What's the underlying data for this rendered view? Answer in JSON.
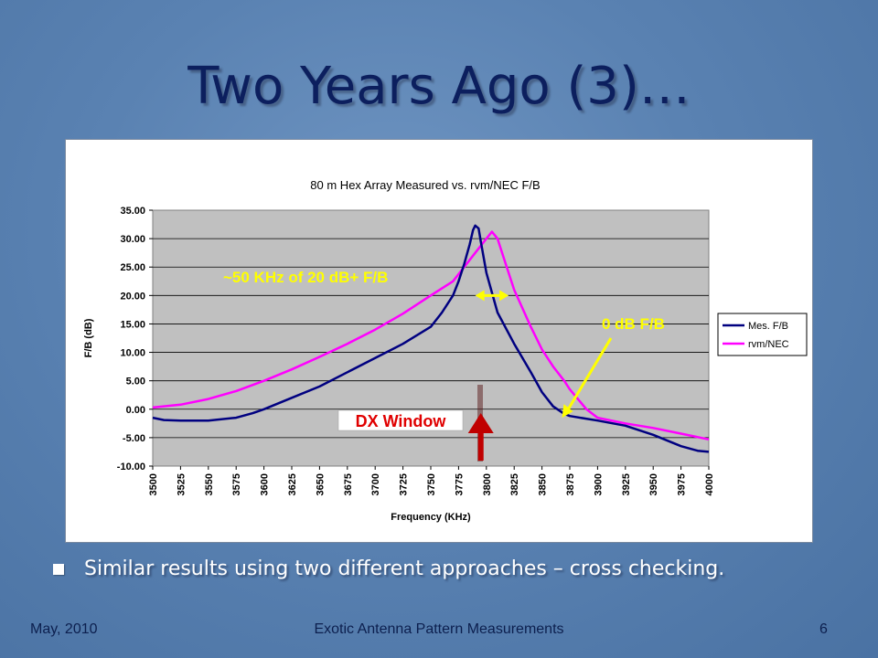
{
  "slide": {
    "title": "Two Years Ago (3)…",
    "bullet": "Similar results using two different approaches – cross checking.",
    "footer_left": "May, 2010",
    "footer_center": "Exotic Antenna Pattern Measurements",
    "footer_right": "6"
  },
  "colors": {
    "plot_bg": "#c0c0c0",
    "series_measured": "#000080",
    "series_model": "#ff00ff",
    "annotation_yellow": "#ffff00",
    "dx_window_red": "#c00000"
  },
  "chart_data": {
    "type": "line",
    "title": "80 m Hex Array Measured vs. rvm/NEC F/B",
    "xlabel": "Frequency (KHz)",
    "ylabel": "F/B (dB)",
    "xlim": [
      3500,
      4000
    ],
    "ylim": [
      -10,
      35
    ],
    "x_ticks": [
      "3500",
      "3525",
      "3550",
      "3575",
      "3600",
      "3625",
      "3650",
      "3675",
      "3700",
      "3725",
      "3750",
      "3775",
      "3800",
      "3825",
      "3850",
      "3875",
      "3900",
      "3925",
      "3950",
      "3975",
      "4000"
    ],
    "y_ticks": [
      "35.00",
      "30.00",
      "25.00",
      "20.00",
      "15.00",
      "10.00",
      "5.00",
      "0.00",
      "-5.00",
      "-10.00"
    ],
    "grid": "horizontal",
    "legend_position": "right",
    "series": [
      {
        "name": "Mes. F/B",
        "x": [
          3500,
          3510,
          3525,
          3550,
          3575,
          3590,
          3600,
          3625,
          3650,
          3675,
          3700,
          3725,
          3750,
          3760,
          3770,
          3775,
          3780,
          3785,
          3788,
          3790,
          3793,
          3795,
          3800,
          3810,
          3825,
          3840,
          3850,
          3860,
          3870,
          3875,
          3900,
          3925,
          3950,
          3975,
          3990,
          4000
        ],
        "y": [
          -1.5,
          -1.9,
          -2.0,
          -2.0,
          -1.5,
          -0.7,
          0.0,
          2.0,
          4.0,
          6.5,
          9.0,
          11.5,
          14.5,
          17.0,
          20.0,
          22.5,
          25.5,
          29.0,
          31.5,
          32.3,
          31.8,
          29.5,
          24.0,
          17.0,
          11.5,
          6.5,
          3.0,
          0.5,
          -0.8,
          -1.2,
          -2.0,
          -2.9,
          -4.5,
          -6.5,
          -7.3,
          -7.5
        ]
      },
      {
        "name": "rvm/NEC",
        "x": [
          3500,
          3525,
          3550,
          3575,
          3600,
          3625,
          3650,
          3675,
          3700,
          3725,
          3750,
          3770,
          3780,
          3790,
          3800,
          3805,
          3810,
          3815,
          3825,
          3840,
          3850,
          3860,
          3870,
          3875,
          3890,
          3900,
          3925,
          3950,
          3975,
          4000
        ],
        "y": [
          0.3,
          0.8,
          1.8,
          3.2,
          5.0,
          7.0,
          9.2,
          11.5,
          14.0,
          16.8,
          20.0,
          22.5,
          25.0,
          27.5,
          30.0,
          31.2,
          30.0,
          27.0,
          21.0,
          14.5,
          10.5,
          7.5,
          5.0,
          3.5,
          0.0,
          -1.5,
          -2.5,
          -3.3,
          -4.3,
          -5.3
        ]
      }
    ],
    "annotations": [
      {
        "label": "~50 KHz of 20 dB+ F/B",
        "from_x": 3790,
        "to_x": 3820,
        "y": 20
      },
      {
        "label": "0 dB F/B",
        "target_x": 3868,
        "target_y": -1.5
      },
      {
        "label": "DX Window",
        "x": 3795,
        "y_from": -10,
        "y_to": -1
      }
    ]
  }
}
